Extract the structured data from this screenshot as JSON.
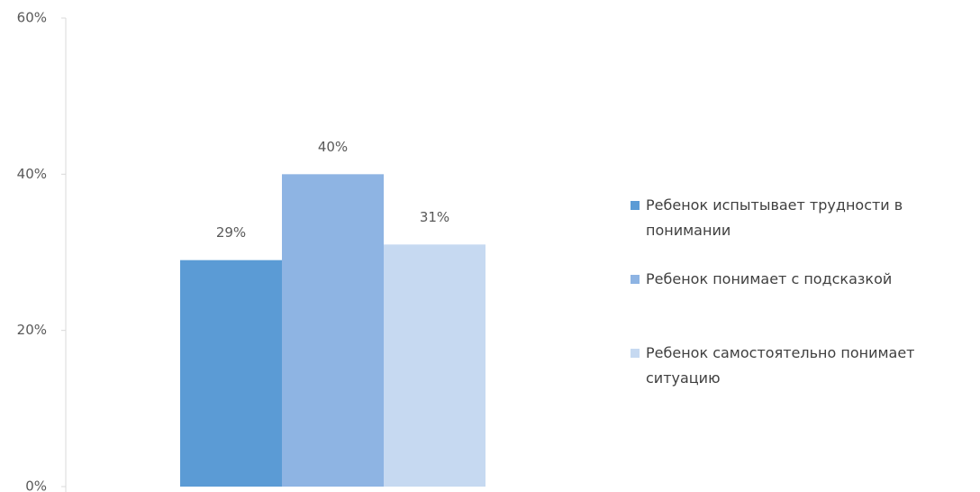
{
  "chart_data": {
    "type": "bar",
    "categories": [
      null
    ],
    "series": [
      {
        "name": "Ребенок испытывает трудности в понимании",
        "color": "#5b9bd5",
        "values": [
          29
        ],
        "value_labels": [
          "29%"
        ]
      },
      {
        "name": "Ребенок понимает с подсказкой",
        "color": "#8eb4e3",
        "values": [
          40
        ],
        "value_labels": [
          "40%"
        ]
      },
      {
        "name": "Ребенок самостоятельно понимает ситуацию",
        "color": "#c6d9f1",
        "values": [
          31
        ],
        "value_labels": [
          "31%"
        ]
      }
    ],
    "ylim": [
      0,
      60
    ],
    "yticks": [
      {
        "value": 0,
        "label": "0%"
      },
      {
        "value": 20,
        "label": "20%"
      },
      {
        "value": 40,
        "label": "40%"
      },
      {
        "value": 60,
        "label": "60%"
      }
    ],
    "legend": "right"
  }
}
